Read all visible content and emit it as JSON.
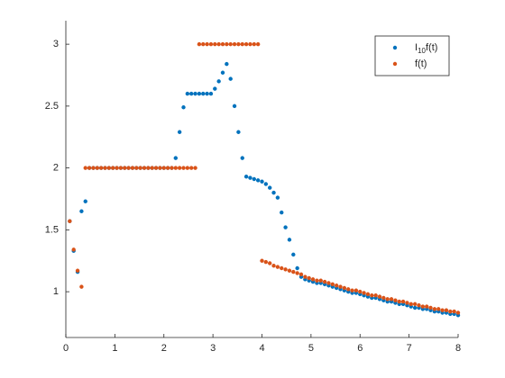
{
  "chart_data": {
    "type": "scatter",
    "x": [
      0.08,
      0.16,
      0.24,
      0.32,
      0.4,
      0.48,
      0.56,
      0.64,
      0.72,
      0.8,
      0.88,
      0.96,
      1.04,
      1.12,
      1.2,
      1.28,
      1.36,
      1.44,
      1.52,
      1.6,
      1.68,
      1.76,
      1.84,
      1.92,
      2.0,
      2.08,
      2.16,
      2.24,
      2.32,
      2.4,
      2.48,
      2.56,
      2.64,
      2.72,
      2.8,
      2.88,
      2.96,
      3.04,
      3.12,
      3.2,
      3.28,
      3.36,
      3.44,
      3.52,
      3.6,
      3.68,
      3.76,
      3.84,
      3.92,
      4.0,
      4.08,
      4.16,
      4.24,
      4.32,
      4.4,
      4.48,
      4.56,
      4.64,
      4.72,
      4.8,
      4.88,
      4.96,
      5.04,
      5.12,
      5.2,
      5.28,
      5.36,
      5.44,
      5.52,
      5.6,
      5.68,
      5.76,
      5.84,
      5.92,
      6.0,
      6.08,
      6.16,
      6.24,
      6.32,
      6.4,
      6.48,
      6.56,
      6.64,
      6.72,
      6.8,
      6.88,
      6.96,
      7.04,
      7.12,
      7.2,
      7.28,
      7.36,
      7.44,
      7.52,
      7.6,
      7.68,
      7.76,
      7.84,
      7.92,
      8.0
    ],
    "series": [
      {
        "name": "I10f(t)",
        "color": "#0072BD",
        "values": [
          1.57,
          1.33,
          1.16,
          1.65,
          1.73,
          2,
          2,
          2,
          2,
          2,
          2,
          2,
          2,
          2,
          2,
          2,
          2,
          2,
          2,
          2,
          2,
          2,
          2,
          2,
          2,
          2,
          2,
          2.08,
          2.29,
          2.49,
          2.6,
          2.6,
          2.6,
          2.6,
          2.6,
          2.6,
          2.6,
          2.64,
          2.7,
          2.77,
          2.84,
          2.72,
          2.5,
          2.29,
          2.08,
          1.93,
          1.92,
          1.91,
          1.9,
          1.89,
          1.87,
          1.84,
          1.8,
          1.76,
          1.64,
          1.52,
          1.42,
          1.3,
          1.19,
          1.12,
          1.1,
          1.09,
          1.08,
          1.07,
          1.07,
          1.06,
          1.05,
          1.04,
          1.03,
          1.02,
          1.01,
          1.0,
          0.99,
          0.99,
          0.98,
          0.97,
          0.96,
          0.95,
          0.95,
          0.94,
          0.93,
          0.92,
          0.92,
          0.91,
          0.9,
          0.9,
          0.89,
          0.88,
          0.87,
          0.87,
          0.86,
          0.86,
          0.85,
          0.84,
          0.84,
          0.83,
          0.83,
          0.82,
          0.82,
          0.81
        ]
      },
      {
        "name": "f(t)",
        "color": "#D95319",
        "values": [
          1.57,
          1.34,
          1.17,
          1.04,
          2,
          2,
          2,
          2,
          2,
          2,
          2,
          2,
          2,
          2,
          2,
          2,
          2,
          2,
          2,
          2,
          2,
          2,
          2,
          2,
          2,
          2,
          2,
          2,
          2,
          2,
          2,
          2,
          2,
          3,
          3,
          3,
          3,
          3,
          3,
          3,
          3,
          3,
          3,
          3,
          3,
          3,
          3,
          3,
          3,
          1.25,
          1.24,
          1.23,
          1.21,
          1.2,
          1.19,
          1.18,
          1.17,
          1.16,
          1.15,
          1.14,
          1.12,
          1.11,
          1.1,
          1.09,
          1.09,
          1.08,
          1.07,
          1.06,
          1.05,
          1.04,
          1.03,
          1.02,
          1.01,
          1.01,
          1.0,
          0.99,
          0.98,
          0.97,
          0.97,
          0.96,
          0.95,
          0.94,
          0.94,
          0.93,
          0.92,
          0.92,
          0.91,
          0.9,
          0.9,
          0.89,
          0.88,
          0.88,
          0.87,
          0.86,
          0.86,
          0.85,
          0.85,
          0.84,
          0.84,
          0.83
        ]
      }
    ],
    "xlim": [
      0,
      8
    ],
    "xticks": [
      0,
      1,
      2,
      3,
      4,
      5,
      6,
      7,
      8
    ],
    "ylim": [
      0.63,
      3.19
    ],
    "yticks": [
      1,
      1.5,
      2,
      2.5,
      3
    ],
    "legend": "northeast"
  }
}
